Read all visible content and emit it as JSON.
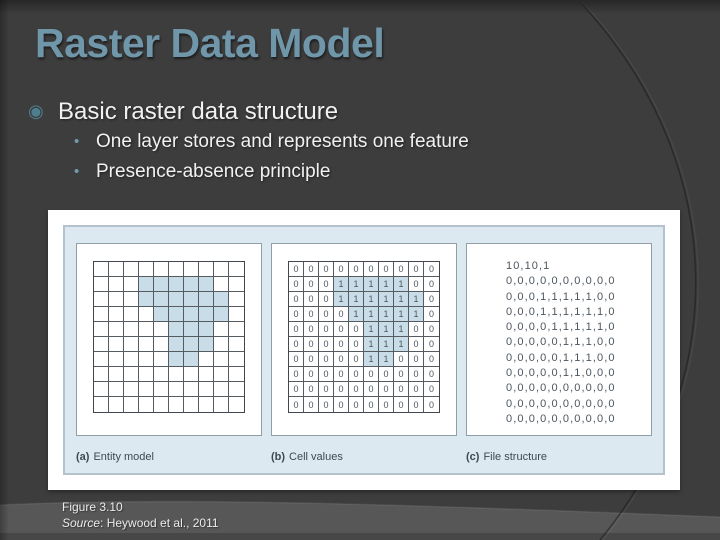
{
  "slide": {
    "title": "Raster Data Model",
    "bullets": [
      {
        "level": 1,
        "text": "Basic raster data structure"
      },
      {
        "level": 2,
        "text": "One layer stores and represents one feature"
      },
      {
        "level": 2,
        "text": "Presence-absence principle"
      }
    ]
  },
  "figure": {
    "grid": {
      "rows": [
        "0000000000",
        "0001111100",
        "0001111110",
        "0000111110",
        "0000011100",
        "0000011100",
        "0000011000",
        "0000000000",
        "0000000000",
        "0000000000"
      ],
      "rows_count": 10,
      "cols_count": 10
    },
    "file_lines": [
      "10,10,1",
      "0,0,0,0,0,0,0,0,0,0",
      "0,0,0,1,1,1,1,1,0,0",
      "0,0,0,1,1,1,1,1,1,0",
      "0,0,0,0,1,1,1,1,1,0",
      "0,0,0,0,0,1,1,1,0,0",
      "0,0,0,0,0,1,1,1,0,0",
      "0,0,0,0,0,1,1,0,0,0",
      "0,0,0,0,0,0,0,0,0,0",
      "0,0,0,0,0,0,0,0,0,0",
      "0,0,0,0,0,0,0,0,0,0"
    ],
    "captions": [
      {
        "label": "(a)",
        "text": "Entity model"
      },
      {
        "label": "(b)",
        "text": "Cell values"
      },
      {
        "label": "(c)",
        "text": "File structure"
      }
    ]
  },
  "caption": {
    "figure_label": "Figure 3.10",
    "source_word": "Source",
    "source_rest": ": Heywood et al., 2011"
  },
  "icons": {
    "bullet_level1": "fisheye-bullet",
    "bullet_level2": "dot-bullet"
  },
  "colors": {
    "background": "#3d3d3d",
    "title": "#6f96a9",
    "bullet_ring": "#4e7f90",
    "bullet_dot": "#719bae",
    "body_text": "#f1f1f1",
    "figure_panel_bg": "#dde9f1",
    "cell_shade": "#c9dde8",
    "swoosh_band": "#575757"
  },
  "glyphs": {
    "bullet1": "◉",
    "bullet2": "•"
  }
}
